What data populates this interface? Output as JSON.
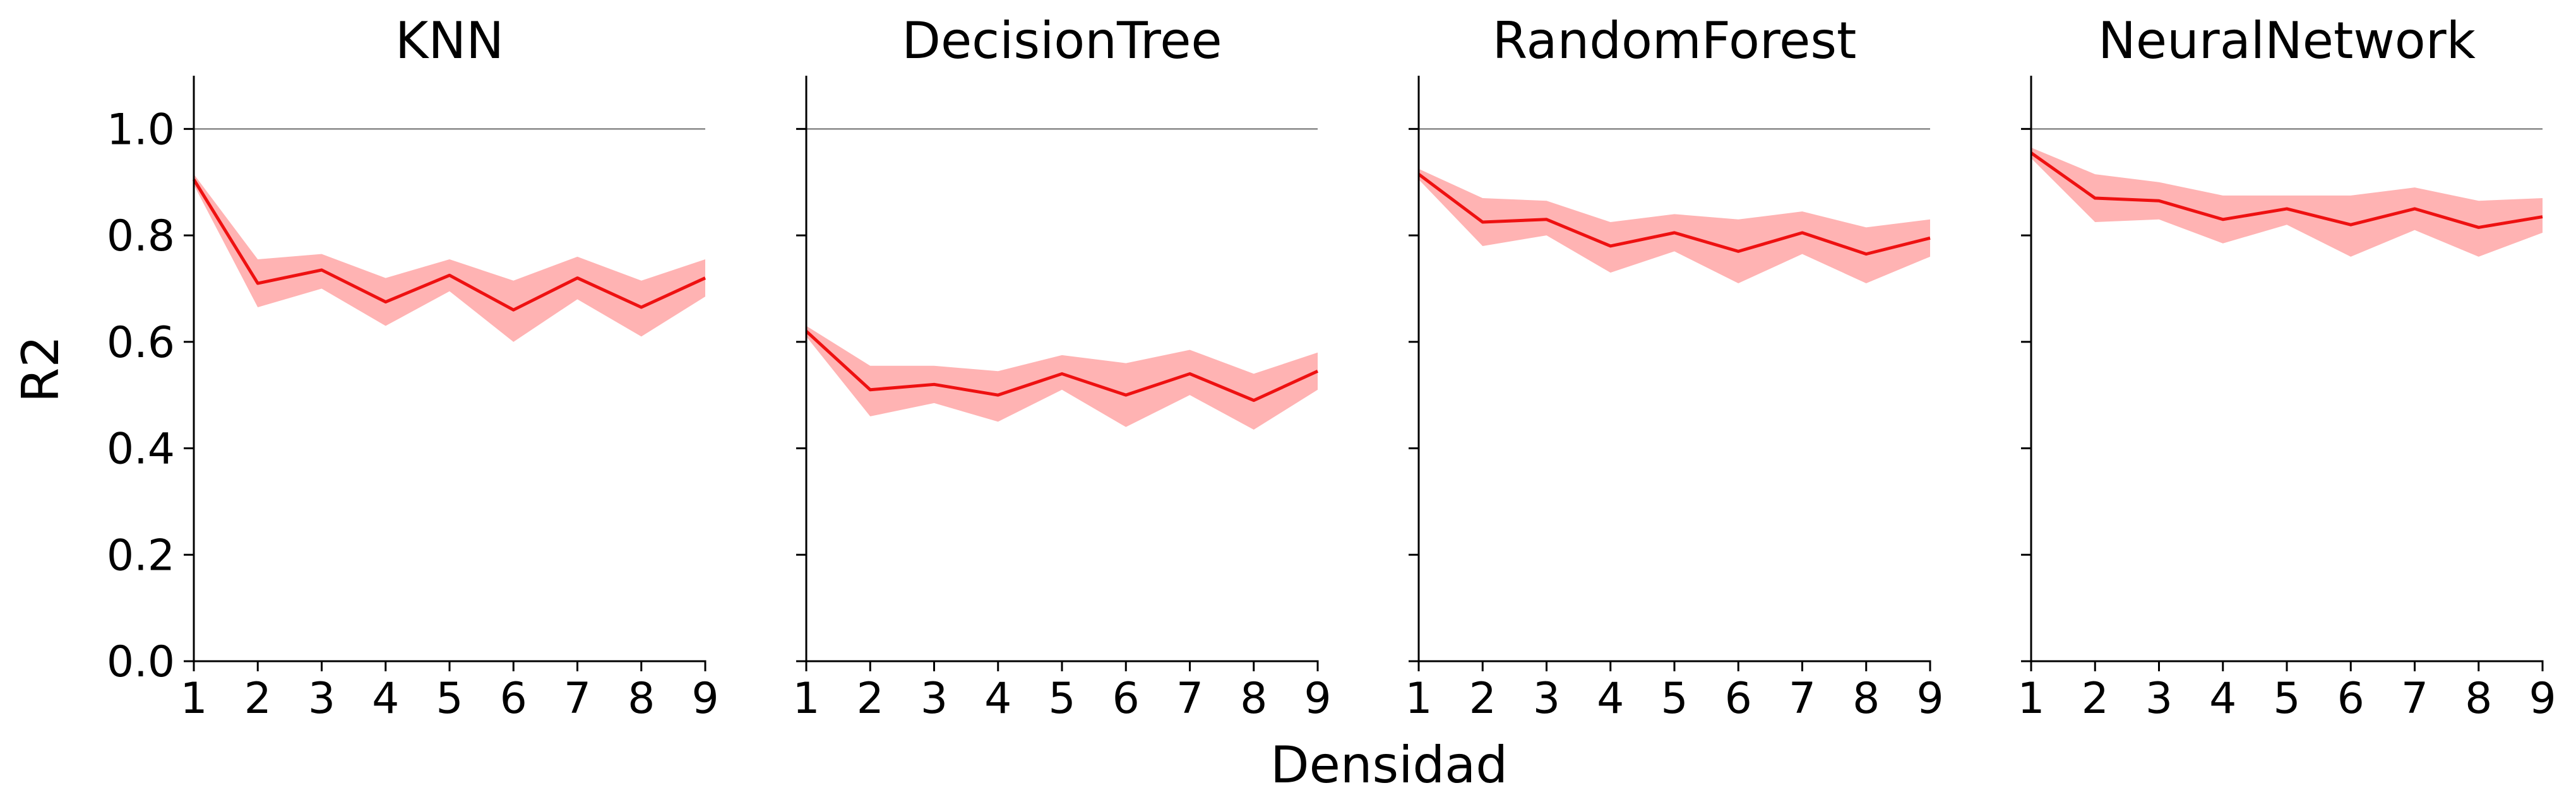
{
  "chart_data": {
    "type": "line",
    "xlabel": "Densidad",
    "ylabel": "R2",
    "x": [
      1,
      2,
      3,
      4,
      5,
      6,
      7,
      8,
      9
    ],
    "xticks": [
      "1",
      "2",
      "3",
      "4",
      "5",
      "6",
      "7",
      "8",
      "9"
    ],
    "yticks": [
      "0.0",
      "0.2",
      "0.4",
      "0.6",
      "0.8",
      "1.0"
    ],
    "xlim": [
      1,
      9
    ],
    "ylim": [
      0,
      1.1
    ],
    "reference_line": 1.0,
    "grid": false,
    "colors": {
      "line": "#ee1111",
      "band": "#ffb3b3",
      "reference": "#888888"
    },
    "panels": [
      {
        "title": "KNN",
        "mean": [
          0.905,
          0.71,
          0.735,
          0.675,
          0.725,
          0.66,
          0.72,
          0.665,
          0.72
        ],
        "lower": [
          0.895,
          0.665,
          0.7,
          0.63,
          0.695,
          0.6,
          0.68,
          0.61,
          0.685
        ],
        "upper": [
          0.915,
          0.755,
          0.765,
          0.72,
          0.755,
          0.715,
          0.76,
          0.715,
          0.755
        ]
      },
      {
        "title": "DecisionTree",
        "mean": [
          0.62,
          0.51,
          0.52,
          0.5,
          0.54,
          0.5,
          0.54,
          0.49,
          0.545
        ],
        "lower": [
          0.61,
          0.46,
          0.485,
          0.45,
          0.51,
          0.44,
          0.5,
          0.435,
          0.51
        ],
        "upper": [
          0.63,
          0.555,
          0.555,
          0.545,
          0.575,
          0.56,
          0.585,
          0.54,
          0.58
        ]
      },
      {
        "title": "RandomForest",
        "mean": [
          0.915,
          0.825,
          0.83,
          0.78,
          0.805,
          0.77,
          0.805,
          0.765,
          0.795
        ],
        "lower": [
          0.905,
          0.78,
          0.8,
          0.73,
          0.77,
          0.71,
          0.765,
          0.71,
          0.76
        ],
        "upper": [
          0.925,
          0.87,
          0.865,
          0.825,
          0.84,
          0.83,
          0.845,
          0.815,
          0.83
        ]
      },
      {
        "title": "NeuralNetwork",
        "mean": [
          0.955,
          0.87,
          0.865,
          0.83,
          0.85,
          0.82,
          0.85,
          0.815,
          0.835
        ],
        "lower": [
          0.945,
          0.825,
          0.83,
          0.785,
          0.82,
          0.76,
          0.81,
          0.76,
          0.805
        ],
        "upper": [
          0.965,
          0.915,
          0.9,
          0.875,
          0.875,
          0.875,
          0.89,
          0.865,
          0.87
        ]
      }
    ]
  }
}
